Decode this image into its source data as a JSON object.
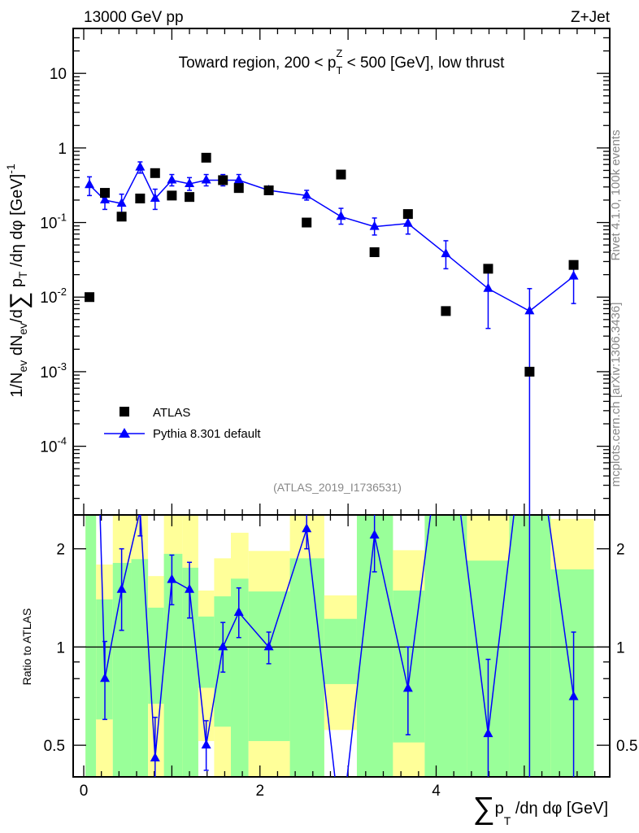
{
  "header": {
    "left": "13000 GeV pp",
    "right": "Z+Jet"
  },
  "side_texts": {
    "rivet": "Rivet 4.1.0,  100k events",
    "mcplots": "mcplots.cern.ch [arXiv:1306.3436]"
  },
  "chart_data": [
    {
      "type": "scatter",
      "title": "Toward region, 200 < p_T^Z < 500 [GeV], low thrust",
      "title_parts": {
        "pre": "Toward region, 200 < p",
        "sub": "T",
        "sup": "Z",
        "post": " < 500 [GeV], low thrust"
      },
      "ylabel": "1/N_ev dN_ev/d∑ p_T /dη dφ [GeV]^-1",
      "ylabel_parts": {
        "a": "1/N",
        "a_sub": "ev",
        "b": " dN",
        "b_sub": "ev",
        "c": "/d",
        "sum": "∑",
        "d": " p",
        "d_sub": "T",
        "e": " /dη dφ  [GeV]",
        "e_sup": "-1"
      },
      "yscale": "log",
      "ylim": [
        1.2e-05,
        40
      ],
      "xlim": [
        -0.12,
        5.97
      ],
      "yticks": [
        {
          "v": 10,
          "label": "10"
        },
        {
          "v": 1,
          "label": "1"
        },
        {
          "v": 0.1,
          "label": "10",
          "exp": "-1"
        },
        {
          "v": 0.01,
          "label": "10",
          "exp": "-2"
        },
        {
          "v": 0.001,
          "label": "10",
          "exp": "-3"
        },
        {
          "v": 0.0001,
          "label": "10",
          "exp": "-4"
        }
      ],
      "watermark": "(ATLAS_2019_I1736531)",
      "legend_position": "lower-left",
      "series": [
        {
          "name": "ATLAS",
          "marker": "square",
          "color": "#000000",
          "x": [
            0.065,
            0.24,
            0.43,
            0.64,
            0.81,
            1.0,
            1.2,
            1.39,
            1.58,
            1.76,
            2.1,
            2.53,
            2.92,
            3.3,
            3.68,
            4.11,
            4.59,
            5.06,
            5.56
          ],
          "y": [
            0.01,
            0.25,
            0.12,
            0.21,
            0.46,
            0.23,
            0.22,
            0.74,
            0.37,
            0.29,
            0.27,
            0.1,
            0.44,
            0.04,
            0.13,
            0.0065,
            0.024,
            0.001,
            0.027
          ]
        },
        {
          "name": "Pythia 8.301 default",
          "marker": "triangle",
          "color": "#0000ff",
          "x": [
            0.065,
            0.24,
            0.43,
            0.64,
            0.81,
            1.0,
            1.2,
            1.39,
            1.58,
            1.76,
            2.1,
            2.53,
            2.92,
            3.3,
            3.68,
            4.11,
            4.59,
            5.06,
            5.56
          ],
          "y": [
            0.32,
            0.2,
            0.18,
            0.55,
            0.21,
            0.37,
            0.33,
            0.37,
            0.37,
            0.37,
            0.27,
            0.23,
            0.12,
            0.088,
            0.097,
            0.038,
            0.013,
            0.0065,
            0.019
          ],
          "ylo": [
            0.23,
            0.15,
            0.135,
            0.46,
            0.15,
            0.31,
            0.27,
            0.31,
            0.31,
            0.31,
            0.24,
            0.2,
            0.095,
            0.068,
            0.07,
            0.024,
            0.0038,
            1e-06,
            0.0082
          ],
          "yhi": [
            0.41,
            0.26,
            0.24,
            0.65,
            0.28,
            0.44,
            0.4,
            0.44,
            0.44,
            0.44,
            0.3,
            0.27,
            0.155,
            0.115,
            0.13,
            0.057,
            0.022,
            0.013,
            0.03
          ]
        }
      ]
    },
    {
      "type": "line",
      "ylabel": "Ratio to ATLAS",
      "xlabel_parts": {
        "sum": "∑",
        "p": "p",
        "sub": "T",
        "rest": " /dη dφ [GeV]"
      },
      "xlabel": "∑ p_T /dη dφ [GeV]",
      "yscale": "log",
      "ylim": [
        0.4,
        2.54
      ],
      "xticks": [
        {
          "v": 0,
          "label": "0"
        },
        {
          "v": 2,
          "label": "2"
        },
        {
          "v": 4,
          "label": "4"
        }
      ],
      "yticks": [
        {
          "v": 2,
          "label": "2"
        },
        {
          "v": 1,
          "label": "1"
        },
        {
          "v": 0.5,
          "label": "0.5"
        }
      ],
      "band_colors": {
        "inner": "#99ff99",
        "outer": "#ffff99"
      },
      "bands": {
        "edges": [
          0.02,
          0.14,
          0.33,
          0.54,
          0.73,
          0.91,
          1.12,
          1.3,
          1.48,
          1.67,
          1.87,
          2.34,
          2.73,
          3.1,
          3.51,
          3.87,
          4.35,
          4.83,
          5.3,
          5.79
        ],
        "green": [
          [
            0.3,
            3
          ],
          [
            0.6,
            1.4
          ],
          [
            0.3,
            1.81
          ],
          [
            0.3,
            1.86
          ],
          [
            0.67,
            1.32
          ],
          [
            0.3,
            1.93
          ],
          [
            0.3,
            1.75
          ],
          [
            0.75,
            1.24
          ],
          [
            0.57,
            1.43
          ],
          [
            0.3,
            1.62
          ],
          [
            0.515,
            1.48
          ],
          [
            0.3,
            1.87
          ],
          [
            0.77,
            1.22
          ],
          [
            0.3,
            3
          ],
          [
            0.51,
            1.49
          ],
          [
            0.3,
            3
          ],
          [
            0.3,
            1.84
          ],
          [
            0.3,
            3
          ],
          [
            0.3,
            1.73
          ]
        ],
        "yellow": [
          [
            0.3,
            3
          ],
          [
            0.3,
            1.79
          ],
          [
            0.3,
            3
          ],
          [
            0.3,
            3
          ],
          [
            0.3,
            1.65
          ],
          [
            0.3,
            3
          ],
          [
            0.3,
            3
          ],
          [
            0.515,
            1.49
          ],
          [
            0.3,
            1.87
          ],
          [
            0.3,
            2.24
          ],
          [
            0.3,
            1.97
          ],
          [
            0.3,
            3
          ],
          [
            0.557,
            1.44
          ],
          [
            0.3,
            3
          ],
          [
            0.3,
            1.98
          ],
          [
            0.3,
            3
          ],
          [
            0.3,
            3
          ],
          [
            0.3,
            3
          ],
          [
            0.3,
            2.47
          ]
        ]
      }
    }
  ]
}
